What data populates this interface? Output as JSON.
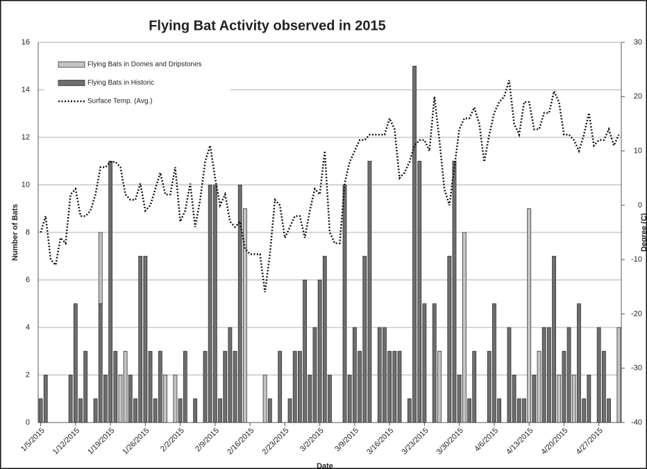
{
  "chart_data": {
    "type": "bar_line",
    "title": "Flying Bat Activity observed in 2015",
    "x_label": "Date",
    "y_label": "Number of Bats",
    "y2_label": "Degree (C)",
    "categories": [
      "1/5/2015",
      null,
      null,
      null,
      null,
      null,
      null,
      "1/12/2015",
      null,
      null,
      null,
      null,
      null,
      null,
      "1/19/2015",
      null,
      null,
      null,
      null,
      null,
      null,
      "1/26/2015",
      null,
      null,
      null,
      null,
      null,
      null,
      "2/2/2015",
      null,
      null,
      null,
      null,
      null,
      null,
      "2/9/2015",
      null,
      null,
      null,
      null,
      null,
      null,
      "2/16/2015",
      null,
      null,
      null,
      null,
      null,
      null,
      "2/23/2015",
      null,
      null,
      null,
      null,
      null,
      null,
      "3/2/2015",
      null,
      null,
      null,
      null,
      null,
      null,
      "3/9/2015",
      null,
      null,
      null,
      null,
      null,
      null,
      "3/16/2015",
      null,
      null,
      null,
      null,
      null,
      null,
      "3/23/2015",
      null,
      null,
      null,
      null,
      null,
      null,
      "3/30/2015",
      null,
      null,
      null,
      null,
      null,
      null,
      "4/6/2015",
      null,
      null,
      null,
      null,
      null,
      null,
      "4/13/2015",
      null,
      null,
      null,
      null,
      null,
      null,
      "4/20/2015",
      null,
      null,
      null,
      null,
      null,
      null,
      "4/27/2015",
      null,
      null,
      null,
      null
    ],
    "series": [
      {
        "name": "Flying Bats in Domes and Dripstones",
        "color": "#c4c4c4",
        "stack": true,
        "values": [
          0,
          0,
          0,
          0,
          0,
          0,
          0,
          0,
          0,
          0,
          0,
          0,
          3,
          0,
          0,
          0,
          2,
          3,
          0,
          0,
          0,
          0,
          0,
          0,
          0,
          2,
          0,
          2,
          0,
          0,
          0,
          0,
          0,
          0,
          0,
          0,
          0,
          0,
          0,
          0,
          0,
          9,
          0,
          0,
          0,
          2,
          0,
          0,
          0,
          0,
          0,
          0,
          0,
          0,
          0,
          0,
          0,
          0,
          0,
          0,
          0,
          0,
          0,
          0,
          0,
          0,
          0,
          0,
          0,
          0,
          0,
          0,
          0,
          0,
          0,
          0,
          0,
          0,
          0,
          0,
          3,
          0,
          0,
          0,
          0,
          8,
          0,
          0,
          0,
          0,
          0,
          0,
          0,
          0,
          0,
          0,
          0,
          0,
          9,
          0,
          3,
          0,
          0,
          0,
          2,
          0,
          0,
          2,
          0,
          0,
          0,
          0,
          0,
          0,
          0,
          0,
          4
        ]
      },
      {
        "name": "Flying Bats in Historic",
        "color": "#6e6e6e",
        "stack": true,
        "values": [
          1,
          2,
          0,
          0,
          0,
          0,
          2,
          5,
          1,
          3,
          0,
          1,
          5,
          2,
          11,
          3,
          0,
          0,
          2,
          1,
          7,
          7,
          3,
          1,
          3,
          0,
          0,
          0,
          1,
          3,
          0,
          1,
          0,
          3,
          10,
          10,
          1,
          3,
          4,
          3,
          10,
          0,
          0,
          0,
          0,
          0,
          1,
          0,
          3,
          0,
          1,
          3,
          3,
          6,
          2,
          4,
          6,
          7,
          2,
          0,
          0,
          10,
          2,
          4,
          3,
          7,
          11,
          0,
          4,
          4,
          3,
          3,
          3,
          0,
          1,
          15,
          11,
          5,
          0,
          5,
          0,
          0,
          7,
          11,
          2,
          0,
          1,
          3,
          0,
          0,
          3,
          5,
          1,
          0,
          4,
          2,
          1,
          1,
          0,
          2,
          0,
          4,
          4,
          7,
          0,
          3,
          4,
          0,
          5,
          1,
          2,
          0,
          4,
          3,
          1,
          0,
          0
        ]
      },
      {
        "name": "Surface Temp. (Avg.)",
        "color": "#111111",
        "axis": "y2",
        "values": [
          -5,
          -2,
          -10,
          -11,
          -6,
          -7,
          2,
          3,
          -2,
          -2,
          -1,
          2,
          7,
          7,
          8,
          8,
          7,
          2,
          1,
          1,
          4,
          -1,
          0,
          3,
          6,
          2,
          2,
          7,
          -3,
          -1,
          4,
          -4,
          1,
          8,
          11,
          5,
          0,
          2,
          -3,
          -4,
          -3,
          -8,
          -9,
          -9,
          -9,
          -16,
          -9,
          1,
          0,
          -6,
          -4,
          -2,
          -2,
          -6,
          -1,
          3,
          2,
          10,
          -5,
          -7,
          -7,
          4,
          8,
          10,
          12,
          12,
          13,
          13,
          13,
          13,
          16,
          14,
          5,
          6,
          8,
          11,
          12,
          12,
          10,
          20,
          12,
          3,
          0,
          7,
          14,
          16,
          16,
          18,
          15,
          8,
          13,
          17,
          19,
          20,
          23,
          15,
          13,
          19,
          19,
          14,
          14,
          17,
          17,
          21,
          19,
          13,
          13,
          12,
          10,
          13,
          17,
          11,
          12,
          12,
          14,
          11,
          13
        ]
      }
    ],
    "ylim": [
      0,
      16
    ],
    "yticks": [
      0,
      2,
      4,
      6,
      8,
      10,
      12,
      14,
      16
    ],
    "y2lim": [
      -40,
      30
    ],
    "y2ticks": [
      -40,
      -30,
      -20,
      -10,
      0,
      10,
      20,
      30
    ],
    "grid": true,
    "legend": "upper left"
  }
}
